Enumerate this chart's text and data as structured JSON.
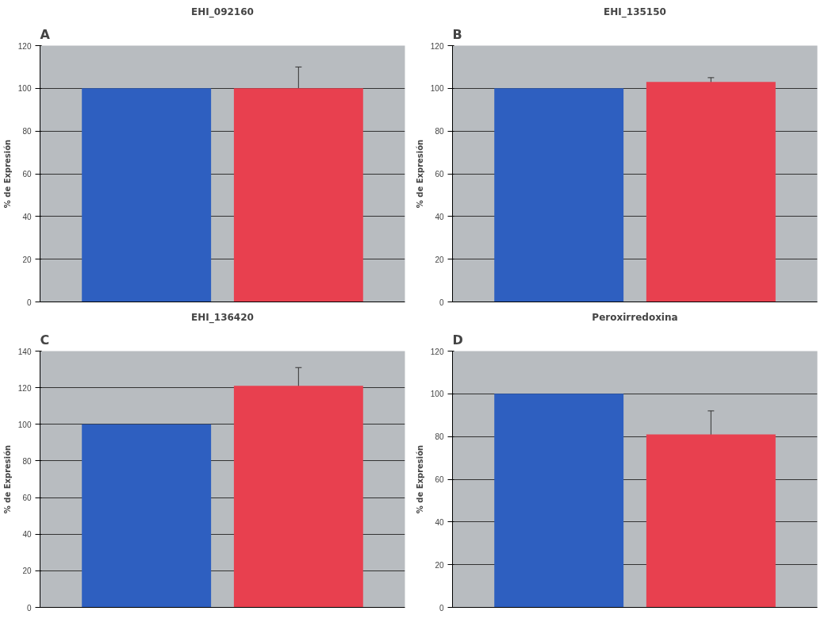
{
  "chart_data": [
    {
      "type": "bar",
      "title": "EHI_092160",
      "ylabel": "% de Expresión",
      "annotations": [
        "A"
      ],
      "categories": [
        null,
        null
      ],
      "values": [
        100,
        100
      ],
      "colors": [
        "#2e5fc0",
        "#e8404f"
      ],
      "errors": [
        null,
        10
      ],
      "ylim": [
        0,
        120
      ],
      "yticks": [
        0,
        20,
        40,
        60,
        80,
        100,
        120
      ],
      "grid": "y"
    },
    {
      "type": "bar",
      "title": "EHI_135150",
      "ylabel": "% de Expresión",
      "annotations": [
        "B"
      ],
      "categories": [
        null,
        null
      ],
      "values": [
        100,
        103
      ],
      "colors": [
        "#2e5fc0",
        "#e8404f"
      ],
      "errors": [
        null,
        2
      ],
      "ylim": [
        0,
        120
      ],
      "yticks": [
        0,
        20,
        40,
        60,
        80,
        100,
        120
      ],
      "grid": "y"
    },
    {
      "type": "bar",
      "title": "EHI_136420",
      "ylabel": "% de Expresión",
      "annotations": [
        "C"
      ],
      "categories": [
        null,
        null
      ],
      "values": [
        100,
        121
      ],
      "colors": [
        "#2e5fc0",
        "#e8404f"
      ],
      "errors": [
        null,
        10
      ],
      "ylim": [
        0,
        140
      ],
      "yticks": [
        0,
        20,
        40,
        60,
        80,
        100,
        120,
        140
      ],
      "grid": "y"
    },
    {
      "type": "bar",
      "title": "Peroxirredoxina",
      "ylabel": "% de Expresión",
      "annotations": [
        "D"
      ],
      "categories": [
        null,
        null
      ],
      "values": [
        100,
        81
      ],
      "colors": [
        "#2e5fc0",
        "#e8404f"
      ],
      "errors": [
        null,
        11
      ],
      "ylim": [
        0,
        120
      ],
      "yticks": [
        0,
        20,
        40,
        60,
        80,
        100,
        120
      ],
      "grid": "y"
    }
  ]
}
